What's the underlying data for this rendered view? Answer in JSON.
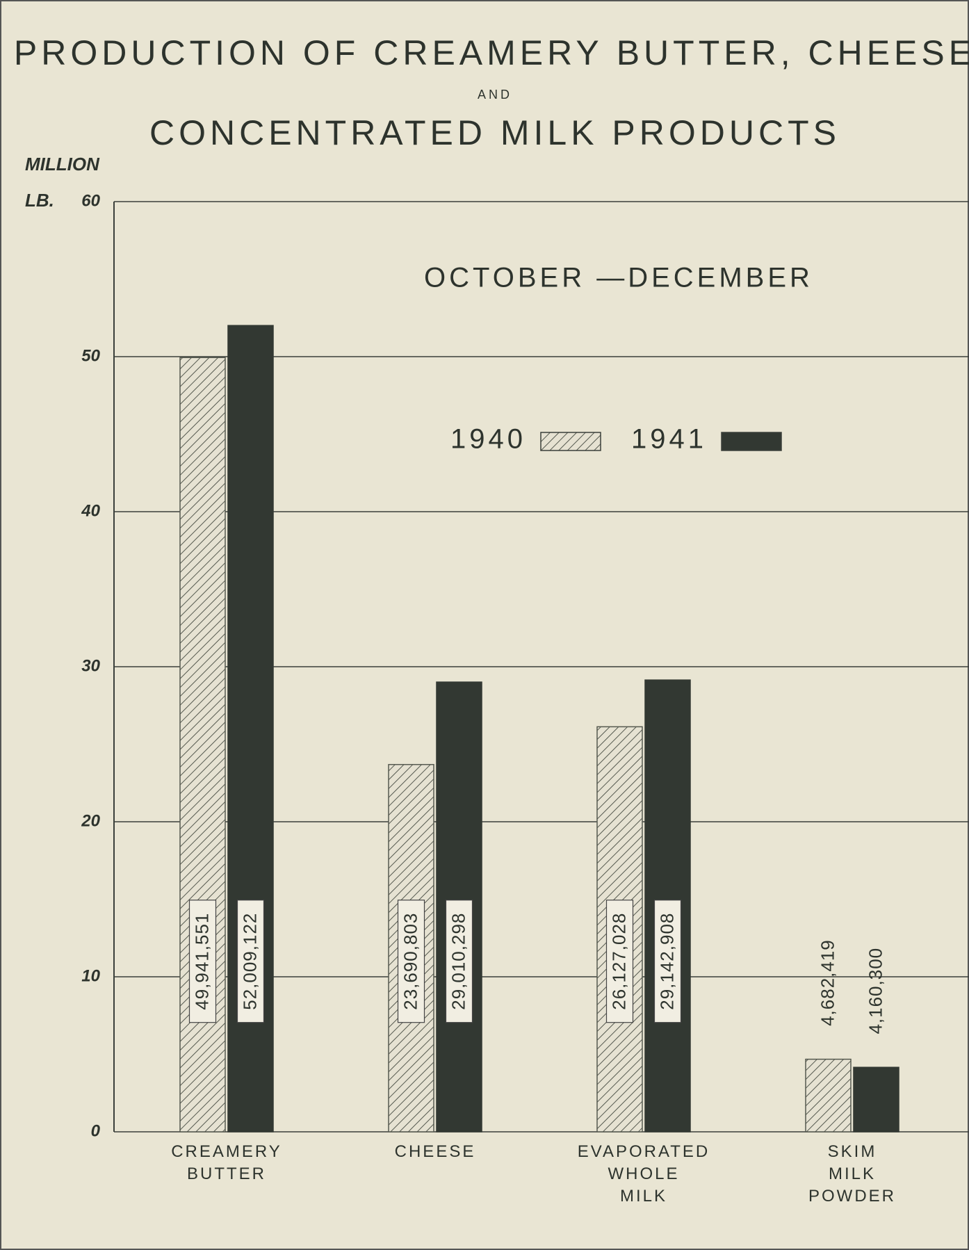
{
  "chart_data": {
    "type": "bar",
    "title": [
      "PRODUCTION OF CREAMERY BUTTER, CHEESE",
      "AND",
      "CONCENTRATED MILK PRODUCTS"
    ],
    "subtitle": "OCTOBER —DECEMBER",
    "ylabel": [
      "MILLION",
      "LB."
    ],
    "categories": [
      "CREAMERY BUTTER",
      "CHEESE",
      "EVAPORATED WHOLE MILK",
      "SKIM MILK POWDER"
    ],
    "series": [
      {
        "name": "1940",
        "color": "#e6e2d2",
        "hatch": true,
        "values": [
          49.941551,
          23.690803,
          26.127028,
          4.682419
        ],
        "value_labels": [
          "49,941,551",
          "23,690,803",
          "26,127,028",
          "4,682,419"
        ]
      },
      {
        "name": "1941",
        "color": "#323832",
        "hatch": false,
        "values": [
          52.009122,
          29.010298,
          29.142908,
          4.1603
        ],
        "value_labels": [
          "52,009,122",
          "29,010,298",
          "29,142,908",
          "4,160,300"
        ]
      }
    ],
    "ylim": [
      0,
      60
    ],
    "yticks": [
      0,
      10,
      20,
      30,
      40,
      50,
      60
    ],
    "grid": true
  }
}
